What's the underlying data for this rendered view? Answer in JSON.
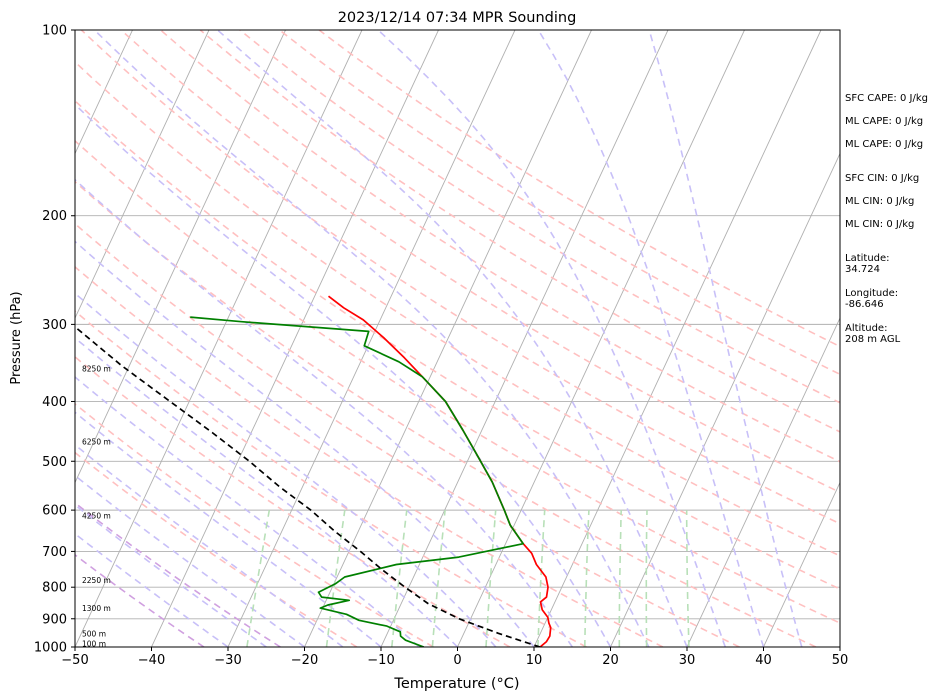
{
  "chart_data": {
    "type": "line",
    "title": "2023/12/14 07:34 MPR Sounding",
    "xlabel": "Temperature (°C)",
    "ylabel": "Pressure (hPa)",
    "xlim": [
      -50,
      50
    ],
    "ylim": [
      1000,
      100
    ],
    "yscale": "log",
    "skew": "skew-T log-p",
    "x_ticks": [
      -50,
      -40,
      -30,
      -20,
      -10,
      0,
      10,
      20,
      30,
      40,
      50
    ],
    "x_tick_labels": [
      "−50",
      "−40",
      "−30",
      "−20",
      "−10",
      "0",
      "10",
      "20",
      "30",
      "40",
      "50"
    ],
    "y_ticks": [
      1000,
      900,
      800,
      700,
      600,
      500,
      400,
      300,
      200,
      100
    ],
    "y_tick_labels": [
      "1000",
      "900",
      "800",
      "700",
      "600",
      "500",
      "400",
      "300",
      "200",
      "100"
    ],
    "height_labels": [
      {
        "pressure": 990,
        "text": "100 m"
      },
      {
        "pressure": 955,
        "text": "500 m"
      },
      {
        "pressure": 868,
        "text": "1300 m"
      },
      {
        "pressure": 782,
        "text": "2250 m"
      },
      {
        "pressure": 614,
        "text": "4250 m"
      },
      {
        "pressure": 466,
        "text": "6250 m"
      },
      {
        "pressure": 355,
        "text": "8250 m"
      }
    ],
    "stats": {
      "sfc_cape": "SFC CAPE: 0 J/kg",
      "ml_cape": "ML CAPE: 0 J/kg",
      "mu_cape": "ML CAPE: 0 J/kg",
      "sfc_cin": "SFC CIN: 0 J/kg",
      "ml_cin": "ML CIN: 0 J/kg",
      "mu_cin": "ML CIN: 0 J/kg",
      "latitude": "Latitude:\n34.724",
      "longitude": "Longitude:\n-86.646",
      "altitude": "Altitude:\n208 m AGL"
    },
    "colors": {
      "temperature": "#ff0000",
      "dewpoint": "#008000",
      "parcel": "#000000",
      "isotherm": "#b0b0b0",
      "dry_adiabat": "#ffc0c0",
      "moist_adiabat": "#c8c0f8",
      "mixing_ratio": "#b8e0b8",
      "violet_adiabat": "#d0a0e0"
    },
    "series": [
      {
        "name": "temperature",
        "style": "solid",
        "points": [
          [
            10.8,
            1000
          ],
          [
            11.3,
            980
          ],
          [
            11.4,
            960
          ],
          [
            11.0,
            930
          ],
          [
            10.5,
            915
          ],
          [
            10.0,
            895
          ],
          [
            8.8,
            870
          ],
          [
            8.1,
            845
          ],
          [
            8.6,
            830
          ],
          [
            8.2,
            800
          ],
          [
            7.3,
            770
          ],
          [
            5.3,
            735
          ],
          [
            4.0,
            705
          ],
          [
            2.3,
            680
          ],
          [
            -0.5,
            635
          ],
          [
            -2.2,
            600
          ],
          [
            -5.5,
            540
          ],
          [
            -9.0,
            490
          ],
          [
            -12.5,
            445
          ],
          [
            -16.5,
            400
          ],
          [
            -21.0,
            365
          ],
          [
            -24.5,
            340
          ],
          [
            -28.5,
            315
          ],
          [
            -32.2,
            295
          ],
          [
            -35.5,
            282
          ],
          [
            -38.2,
            270
          ]
        ]
      },
      {
        "name": "dewpoint",
        "style": "solid",
        "points": [
          [
            -4.4,
            1000
          ],
          [
            -7.2,
            975
          ],
          [
            -8.1,
            960
          ],
          [
            -8.4,
            945
          ],
          [
            -10.5,
            925
          ],
          [
            -14.5,
            905
          ],
          [
            -16.5,
            885
          ],
          [
            -20.3,
            865
          ],
          [
            -19.5,
            855
          ],
          [
            -17.0,
            840
          ],
          [
            -20.8,
            830
          ],
          [
            -21.5,
            815
          ],
          [
            -19.8,
            790
          ],
          [
            -19.0,
            770
          ],
          [
            -13.0,
            735
          ],
          [
            -5.3,
            715
          ],
          [
            2.3,
            680
          ],
          [
            -0.5,
            635
          ],
          [
            -2.2,
            600
          ],
          [
            -5.5,
            540
          ],
          [
            -9.0,
            490
          ],
          [
            -12.5,
            445
          ],
          [
            -16.5,
            400
          ],
          [
            -21.0,
            365
          ],
          [
            -25.0,
            345
          ],
          [
            -30.5,
            325
          ],
          [
            -30.8,
            308
          ],
          [
            -48.0,
            297
          ],
          [
            -55.0,
            292
          ]
        ]
      },
      {
        "name": "parcel",
        "style": "dashed",
        "points": [
          [
            10.8,
            1000
          ],
          [
            4.5,
            950
          ],
          [
            -1.5,
            900
          ],
          [
            -6.5,
            850
          ],
          [
            -10.5,
            800
          ],
          [
            -14.5,
            750
          ],
          [
            -18.5,
            700
          ],
          [
            -23.0,
            650
          ],
          [
            -27.5,
            600
          ],
          [
            -33.0,
            550
          ],
          [
            -38.5,
            500
          ],
          [
            -45.0,
            450
          ],
          [
            -52.5,
            400
          ],
          [
            -61.0,
            350
          ],
          [
            -70.0,
            300
          ],
          [
            -77.0,
            270
          ]
        ]
      }
    ]
  }
}
